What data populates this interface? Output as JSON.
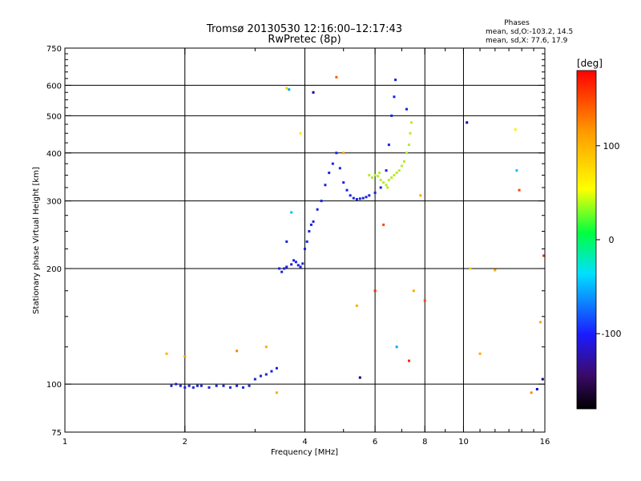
{
  "chart_data": {
    "type": "scatter",
    "title": "Tromsø 20130530 12:16:00–12:17:43",
    "subtitle": "RwPretec (8p)",
    "stats": {
      "heading": "Phases",
      "line1": "mean, sd,O:-103.2, 14.5",
      "line2": "mean, sd,X:  77.6, 17.9"
    },
    "xlabel": "Frequency [MHz]",
    "ylabel": "Stationary phase Virtual Height [km]",
    "xscale": "log",
    "yscale": "log",
    "xlim": [
      1,
      16
    ],
    "ylim": [
      75,
      750
    ],
    "xticks": [
      1,
      2,
      4,
      6,
      8,
      10,
      16
    ],
    "xtick_labels": [
      "1",
      "2",
      "4",
      "6",
      "8",
      "10",
      "16"
    ],
    "yticks": [
      75,
      100,
      200,
      300,
      400,
      500,
      600,
      750
    ],
    "ytick_labels": [
      "75",
      "100",
      "200",
      "300",
      "400",
      "500",
      "600",
      "750"
    ],
    "major_gridlines_x": [
      2,
      4,
      6,
      8,
      10
    ],
    "major_gridlines_y": [
      100,
      200,
      300,
      400,
      500,
      600
    ],
    "grid": true,
    "colorbar": {
      "label": "[deg]",
      "range": [
        -180,
        180
      ],
      "ticks": [
        100,
        0,
        -100
      ],
      "tick_labels": [
        "100",
        "0",
        "-100"
      ]
    },
    "series": [
      {
        "color": "#1a22e0",
        "points": [
          [
            1.85,
            99
          ],
          [
            1.9,
            100
          ],
          [
            1.95,
            99
          ],
          [
            2.0,
            98
          ],
          [
            2.05,
            99
          ],
          [
            2.1,
            98
          ],
          [
            2.15,
            99
          ],
          [
            2.2,
            99
          ],
          [
            2.3,
            98
          ],
          [
            2.4,
            99
          ],
          [
            2.5,
            99
          ],
          [
            2.6,
            98
          ],
          [
            2.7,
            99
          ],
          [
            2.8,
            98
          ],
          [
            2.9,
            99
          ],
          [
            3.0,
            103
          ],
          [
            3.1,
            105
          ],
          [
            3.2,
            106
          ],
          [
            3.3,
            108
          ],
          [
            3.4,
            110
          ],
          [
            3.5,
            196
          ],
          [
            3.55,
            200
          ],
          [
            3.6,
            202
          ],
          [
            3.7,
            205
          ],
          [
            3.75,
            210
          ],
          [
            3.8,
            208
          ],
          [
            3.85,
            204
          ],
          [
            3.9,
            202
          ],
          [
            3.95,
            206
          ],
          [
            4.0,
            225
          ],
          [
            4.05,
            235
          ],
          [
            4.1,
            250
          ],
          [
            4.2,
            265
          ],
          [
            4.3,
            285
          ],
          [
            4.4,
            300
          ],
          [
            4.5,
            330
          ],
          [
            4.6,
            355
          ],
          [
            4.7,
            375
          ],
          [
            4.8,
            400
          ],
          [
            4.9,
            365
          ],
          [
            5.0,
            335
          ],
          [
            5.1,
            320
          ],
          [
            5.2,
            310
          ],
          [
            5.3,
            305
          ],
          [
            5.4,
            303
          ],
          [
            5.5,
            304
          ],
          [
            5.6,
            305
          ],
          [
            5.7,
            307
          ],
          [
            5.8,
            310
          ],
          [
            6.0,
            315
          ],
          [
            6.2,
            325
          ],
          [
            6.4,
            360
          ],
          [
            6.5,
            420
          ],
          [
            6.6,
            500
          ],
          [
            6.7,
            560
          ],
          [
            6.75,
            620
          ],
          [
            7.2,
            520
          ],
          [
            3.45,
            200
          ],
          [
            3.6,
            235
          ],
          [
            4.15,
            260
          ]
        ]
      },
      {
        "color": "#b7ea2e",
        "points": [
          [
            5.9,
            345
          ],
          [
            6.0,
            350
          ],
          [
            6.1,
            348
          ],
          [
            6.2,
            340
          ],
          [
            6.3,
            335
          ],
          [
            6.4,
            330
          ],
          [
            6.5,
            340
          ],
          [
            6.6,
            345
          ],
          [
            6.7,
            350
          ],
          [
            6.8,
            355
          ],
          [
            6.9,
            360
          ],
          [
            7.0,
            370
          ],
          [
            7.1,
            380
          ],
          [
            7.2,
            400
          ],
          [
            7.3,
            420
          ],
          [
            7.35,
            450
          ],
          [
            7.4,
            480
          ],
          [
            5.8,
            350
          ],
          [
            6.15,
            355
          ],
          [
            6.45,
            325
          ]
        ]
      }
    ],
    "outliers": [
      {
        "x": 1.8,
        "y": 120,
        "color": "#ffb000"
      },
      {
        "x": 2.0,
        "y": 118,
        "color": "#ff9900"
      },
      {
        "x": 2.7,
        "y": 122,
        "color": "#ff8800"
      },
      {
        "x": 3.2,
        "y": 125,
        "color": "#ffaa00"
      },
      {
        "x": 3.4,
        "y": 95,
        "color": "#ffaa00"
      },
      {
        "x": 3.6,
        "y": 590,
        "color": "#ffcc00"
      },
      {
        "x": 3.65,
        "y": 585,
        "color": "#00a0ff"
      },
      {
        "x": 3.9,
        "y": 450,
        "color": "#ffee00"
      },
      {
        "x": 3.7,
        "y": 280,
        "color": "#00c0ff"
      },
      {
        "x": 4.8,
        "y": 630,
        "color": "#ff5500"
      },
      {
        "x": 5.0,
        "y": 400,
        "color": "#ffaa00"
      },
      {
        "x": 5.4,
        "y": 160,
        "color": "#ffaa00"
      },
      {
        "x": 6.3,
        "y": 260,
        "color": "#ff4400"
      },
      {
        "x": 6.0,
        "y": 175,
        "color": "#ff2200"
      },
      {
        "x": 6.8,
        "y": 125,
        "color": "#00aaff"
      },
      {
        "x": 7.3,
        "y": 115,
        "color": "#ff2200"
      },
      {
        "x": 7.5,
        "y": 175,
        "color": "#ffaa00"
      },
      {
        "x": 7.8,
        "y": 310,
        "color": "#ffaa00"
      },
      {
        "x": 8.0,
        "y": 165,
        "color": "#ff4400"
      },
      {
        "x": 10.2,
        "y": 480,
        "color": "#0000aa"
      },
      {
        "x": 10.4,
        "y": 200,
        "color": "#ffcc00"
      },
      {
        "x": 11.0,
        "y": 120,
        "color": "#ffaa00"
      },
      {
        "x": 12.0,
        "y": 198,
        "color": "#ffaa00"
      },
      {
        "x": 13.5,
        "y": 460,
        "color": "#ffee00"
      },
      {
        "x": 13.6,
        "y": 360,
        "color": "#00c0ff"
      },
      {
        "x": 13.8,
        "y": 320,
        "color": "#ff4400"
      },
      {
        "x": 14.8,
        "y": 95,
        "color": "#ff8800"
      },
      {
        "x": 15.3,
        "y": 97,
        "color": "#0000cc"
      },
      {
        "x": 15.6,
        "y": 145,
        "color": "#ffaa00"
      },
      {
        "x": 15.8,
        "y": 103,
        "color": "#000080"
      },
      {
        "x": 15.9,
        "y": 216,
        "color": "#ff2200"
      },
      {
        "x": 4.2,
        "y": 575,
        "color": "#0000aa"
      },
      {
        "x": 5.5,
        "y": 104,
        "color": "#000080"
      }
    ]
  }
}
